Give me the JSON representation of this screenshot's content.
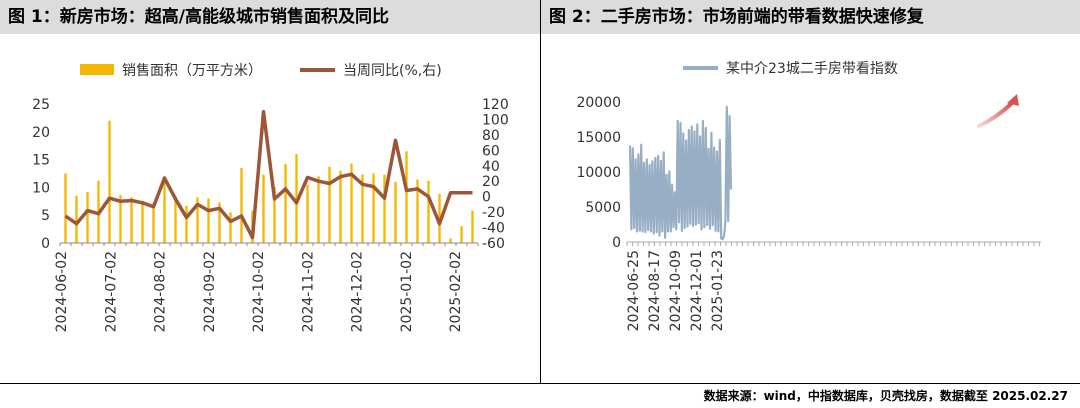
{
  "panel1": {
    "title": "图 1：新房市场：超高/高能级城市销售面积及同比"
  },
  "panel2": {
    "title": "图 2：二手房市场：市场前端的带看数据快速修复"
  },
  "source": "数据来源：wind，中指数据库，贝壳找房，数据截至 2025.02.27",
  "colors": {
    "bar": "#f5b800",
    "line": "#9c5638",
    "line2": "#98aec5",
    "arrow": "#d9534f",
    "titlebg": "#dcdcdc"
  },
  "chart_data": [
    {
      "type": "bar+line",
      "legend": [
        "销售面积（万平方米）",
        "当周同比(%,右)"
      ],
      "legend_position": "top",
      "x_tick_labels": [
        "2024-06-02",
        "2024-07-02",
        "2024-08-02",
        "2024-09-02",
        "2024-10-02",
        "2024-11-02",
        "2024-12-02",
        "2025-01-02",
        "2025-02-02"
      ],
      "y_left": {
        "ticks": [
          0,
          5,
          10,
          15,
          20,
          25
        ],
        "ylim": [
          0,
          25
        ]
      },
      "y_right": {
        "ticks": [
          -60,
          -40,
          -20,
          0,
          20,
          40,
          60,
          80,
          100,
          120
        ],
        "ylim": [
          -60,
          120
        ]
      },
      "series": [
        {
          "name": "销售面积（万平方米）",
          "axis": "left",
          "kind": "bar",
          "values": [
            12.5,
            8.5,
            9.2,
            11.2,
            22,
            8.6,
            8.2,
            7.5,
            7.2,
            12,
            8.4,
            6.7,
            8.2,
            8,
            7.3,
            5.5,
            13.5,
            5.8,
            12.3,
            10.1,
            14.2,
            16,
            10.5,
            12,
            13.7,
            13,
            14.3,
            12.3,
            12.5,
            12.3,
            11,
            16.5,
            11.4,
            11.2,
            8.8,
            0.8,
            3,
            5.8
          ]
        },
        {
          "name": "当周同比(%,右)",
          "axis": "right",
          "kind": "line",
          "values": [
            -25,
            -35,
            -18,
            -22,
            -2,
            -6,
            -5,
            -8,
            -13,
            24,
            -3,
            -27,
            -10,
            -18,
            -15,
            -32,
            -25,
            -53,
            110,
            -3,
            10,
            -8,
            25,
            20,
            17,
            26,
            29,
            16,
            13,
            -2,
            73,
            8,
            10,
            0,
            -35,
            5,
            5,
            5
          ]
        }
      ]
    },
    {
      "type": "line",
      "legend": [
        "某中介23城二手房带看指数"
      ],
      "legend_position": "top",
      "x_tick_labels": [
        "2024-06-25",
        "2024-08-17",
        "2024-10-09",
        "2024-12-01",
        "2025-01-23"
      ],
      "y": {
        "ticks": [
          0,
          5000,
          10000,
          15000,
          20000
        ],
        "ylim": [
          0,
          20000
        ]
      },
      "series": [
        {
          "name": "某中介23城二手房带看指数",
          "values": [
            13800,
            1800,
            13400,
            2000,
            11800,
            1500,
            12500,
            1600,
            13900,
            1500,
            11300,
            1400,
            11800,
            1700,
            11000,
            1500,
            11500,
            1200,
            12000,
            1400,
            12300,
            900,
            11600,
            1500,
            12800,
            600,
            9600,
            1500,
            10100,
            1500,
            8200,
            2100,
            7100,
            1800,
            17300,
            2800,
            17000,
            1600,
            15500,
            2000,
            14500,
            2200,
            16000,
            2600,
            16500,
            2300,
            15800,
            2500,
            16800,
            2700,
            15100,
            1800,
            17300,
            2100,
            16300,
            2400,
            13300,
            1900,
            15600,
            2400,
            13500,
            1600,
            12900,
            1500,
            14600,
            500,
            400,
            800,
            2900,
            19300,
            3000,
            18000,
            7500
          ]
        }
      ]
    }
  ]
}
